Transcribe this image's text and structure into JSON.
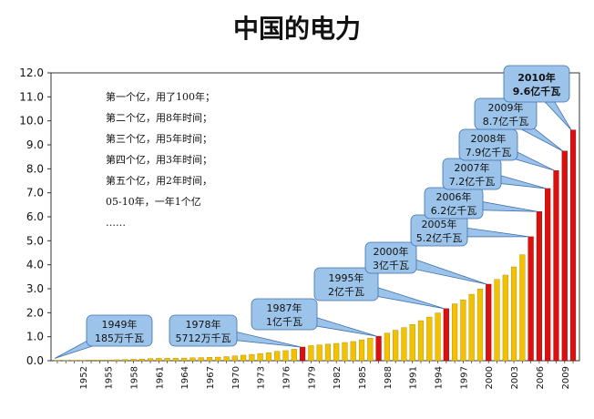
{
  "chart_data": {
    "type": "bar",
    "title": "中国的电力",
    "xlabel": "",
    "ylabel": "",
    "ylim": [
      0,
      12
    ],
    "y_ticks": [
      "0.0",
      "1.0",
      "2.0",
      "3.0",
      "4.0",
      "5.0",
      "6.0",
      "7.0",
      "8.0",
      "9.0",
      "10.0",
      "11.0",
      "12.0"
    ],
    "x": [
      1949,
      1950,
      1951,
      1952,
      1953,
      1954,
      1955,
      1956,
      1957,
      1958,
      1959,
      1960,
      1961,
      1962,
      1963,
      1964,
      1965,
      1966,
      1967,
      1968,
      1969,
      1970,
      1971,
      1972,
      1973,
      1974,
      1975,
      1976,
      1977,
      1978,
      1979,
      1980,
      1981,
      1982,
      1983,
      1984,
      1985,
      1986,
      1987,
      1988,
      1989,
      1990,
      1991,
      1992,
      1993,
      1994,
      1995,
      1996,
      1997,
      1998,
      1999,
      2000,
      2001,
      2002,
      2003,
      2004,
      2005,
      2006,
      2007,
      2008,
      2009,
      2010
    ],
    "x_tick_labels": [
      "1952",
      "1955",
      "1958",
      "1961",
      "1964",
      "1967",
      "1970",
      "1973",
      "1976",
      "1979",
      "1982",
      "1985",
      "1988",
      "1991",
      "1994",
      "1997",
      "2000",
      "2003",
      "2006",
      "2009"
    ],
    "values": [
      0.02,
      0.02,
      0.02,
      0.02,
      0.03,
      0.03,
      0.03,
      0.04,
      0.05,
      0.06,
      0.07,
      0.09,
      0.1,
      0.1,
      0.1,
      0.11,
      0.12,
      0.13,
      0.14,
      0.15,
      0.17,
      0.2,
      0.23,
      0.26,
      0.3,
      0.33,
      0.39,
      0.42,
      0.48,
      0.57,
      0.63,
      0.66,
      0.69,
      0.72,
      0.76,
      0.8,
      0.87,
      0.94,
      1.02,
      1.15,
      1.27,
      1.38,
      1.51,
      1.67,
      1.82,
      1.99,
      2.17,
      2.37,
      2.54,
      2.77,
      2.99,
      3.19,
      3.39,
      3.57,
      3.91,
      4.42,
      5.17,
      6.22,
      7.18,
      7.93,
      8.74,
      9.62
    ],
    "highlight_years": [
      1978,
      1987,
      1995,
      2000,
      2005,
      2006,
      2007,
      2008,
      2009,
      2010
    ],
    "colors": {
      "normal": "#f2c200",
      "highlight": "#dd1010",
      "callout_fill": "#9cc4ea",
      "callout_stroke": "#3f6fae"
    },
    "grid": false,
    "notes": [
      "第一个亿，用了100年；",
      "第二个亿，用8年时间；",
      "第三个亿，用5年时间；",
      "第四个亿，用3年时间；",
      "第五个亿，用2年时间，",
      "05-10年，一年1个亿",
      "……"
    ],
    "annotations": [
      {
        "year": 1949,
        "line1": "1949年",
        "line2": "185万千瓦"
      },
      {
        "year": 1978,
        "line1": "1978年",
        "line2": "5712万千瓦"
      },
      {
        "year": 1987,
        "line1": "1987年",
        "line2": "1亿千瓦"
      },
      {
        "year": 1995,
        "line1": "1995年",
        "line2": "2亿千瓦"
      },
      {
        "year": 2000,
        "line1": "2000年",
        "line2": "3亿千瓦"
      },
      {
        "year": 2005,
        "line1": "2005年",
        "line2": "5.2亿千瓦"
      },
      {
        "year": 2006,
        "line1": "2006年",
        "line2": "6.2亿千瓦"
      },
      {
        "year": 2007,
        "line1": "2007年",
        "line2": "7.2亿千瓦"
      },
      {
        "year": 2008,
        "line1": "2008年",
        "line2": "7.9亿千瓦"
      },
      {
        "year": 2009,
        "line1": "2009年",
        "line2": "8.7亿千瓦"
      },
      {
        "year": 2010,
        "line1": "2010年",
        "line2": "9.6亿千瓦"
      }
    ]
  }
}
